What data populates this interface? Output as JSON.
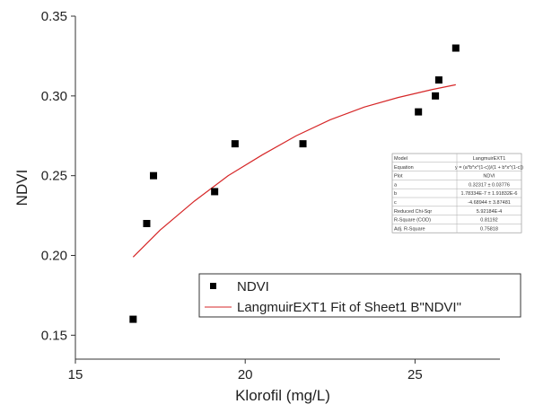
{
  "chart_data": {
    "type": "scatter",
    "xlabel": "Klorofil (mg/L)",
    "ylabel": "NDVI",
    "xlim": [
      15,
      27.5
    ],
    "ylim": [
      0.135,
      0.35
    ],
    "x_ticks": [
      15,
      20,
      25
    ],
    "y_ticks": [
      0.15,
      0.2,
      0.25,
      0.3,
      0.35
    ],
    "x_tick_labels": [
      "15",
      "20",
      "25"
    ],
    "y_tick_labels": [
      "0.15",
      "0.20",
      "0.25",
      "0.30",
      "0.35"
    ],
    "grid": false,
    "legend_position": "bottom-right",
    "series": [
      {
        "name": "NDVI",
        "kind": "scatter",
        "marker": "square",
        "color": "#000000",
        "x": [
          16.7,
          17.1,
          17.3,
          19.1,
          19.7,
          21.7,
          25.1,
          25.6,
          25.7,
          26.2
        ],
        "y": [
          0.16,
          0.22,
          0.25,
          0.24,
          0.27,
          0.27,
          0.29,
          0.3,
          0.31,
          0.33
        ]
      },
      {
        "name": "LangmuirEXT1 Fit of Sheet1 B\"NDVI\"",
        "kind": "line",
        "color": "#d62728",
        "x": [
          16.7,
          17.5,
          18.5,
          19.5,
          20.5,
          21.5,
          22.5,
          23.5,
          24.5,
          25.5,
          26.2
        ],
        "y": [
          0.199,
          0.216,
          0.234,
          0.25,
          0.263,
          0.275,
          0.285,
          0.293,
          0.299,
          0.304,
          0.307
        ]
      }
    ],
    "fit_table": {
      "rows": [
        [
          "Model",
          "LangmuirEXT1"
        ],
        [
          "Equation",
          "y = (a*b*x^(1-c))/(1 + b*x^(1-c))"
        ],
        [
          "Plot",
          "NDVI"
        ],
        [
          "a",
          "0.32317 ± 0.03776"
        ],
        [
          "b",
          "1.78334E-7 ± 1.91832E-6"
        ],
        [
          "c",
          "-4.68944 ± 3.87481"
        ],
        [
          "Reduced Chi-Sqr",
          "5.92184E-4"
        ],
        [
          "R-Square (COD)",
          "0.81192"
        ],
        [
          "Adj. R-Square",
          "0.75818"
        ]
      ]
    }
  }
}
